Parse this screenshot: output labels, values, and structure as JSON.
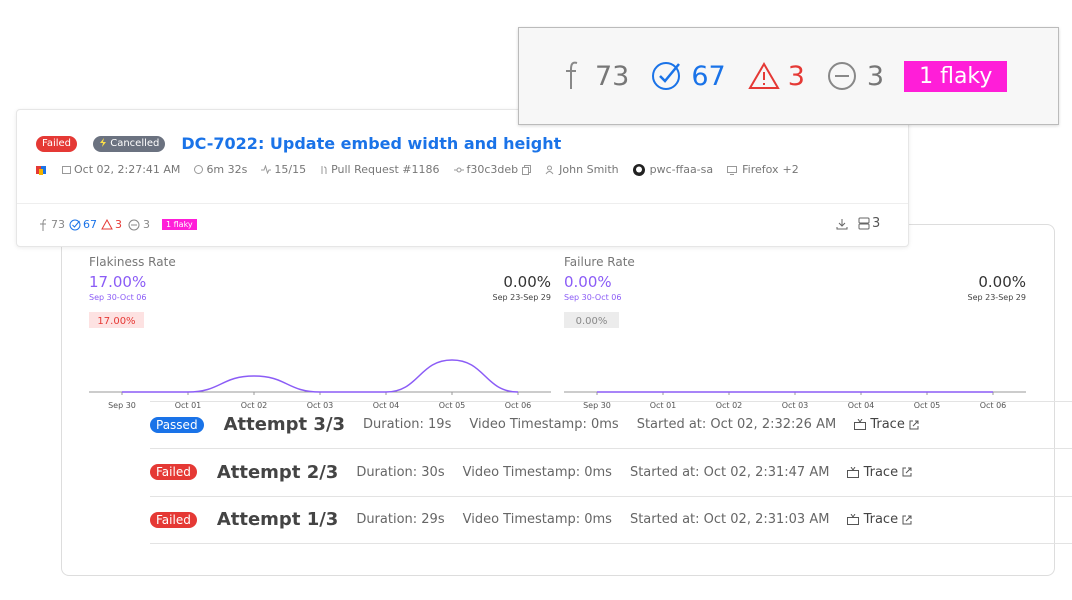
{
  "zoom_stats": {
    "tests": 73,
    "passed": 67,
    "failed": 3,
    "skipped": 3,
    "flaky": "1 flaky"
  },
  "run": {
    "status": "Failed",
    "state": "Cancelled",
    "title": "DC-7022: Update embed width and height",
    "meta": {
      "date": "Oct 02, 2:27:41 AM",
      "duration": "6m 32s",
      "tests": "15/15",
      "pull_request": "Pull Request #1186",
      "commit": "f30c3deb",
      "author": "John Smith",
      "branch": "pwc-ffaa-sa",
      "browser": "Firefox",
      "more_browsers": "+2"
    },
    "stats": {
      "tests": 73,
      "passed": 67,
      "failed": 3,
      "skipped": 3,
      "flaky": "1 flaky",
      "attempts": 3
    }
  },
  "chart_data": [
    {
      "type": "line",
      "title": "Flakiness Rate",
      "current_value": "17.00%",
      "current_range": "Sep 30-Oct 06",
      "badge": "17.00%",
      "previous_value": "0.00%",
      "previous_range": "Sep 23-Sep 29",
      "categories": [
        "Sep 30",
        "Oct 01",
        "Oct 02",
        "Oct 03",
        "Oct 04",
        "Oct 05",
        "Oct 06"
      ],
      "values": [
        0,
        0,
        1,
        0,
        0,
        2,
        0
      ],
      "color": "#8b5cf6",
      "badge_color": "#fde2e2",
      "badge_text_color": "#e53935"
    },
    {
      "type": "line",
      "title": "Failure Rate",
      "current_value": "0.00%",
      "current_range": "Sep 30-Oct 06",
      "badge": "0.00%",
      "previous_value": "0.00%",
      "previous_range": "Sep 23-Sep 29",
      "categories": [
        "Sep 30",
        "Oct 01",
        "Oct 02",
        "Oct 03",
        "Oct 04",
        "Oct 05",
        "Oct 06"
      ],
      "values": [
        0,
        0,
        0,
        0,
        0,
        0,
        0
      ],
      "color": "#8b5cf6",
      "badge_color": "#ececec",
      "badge_text_color": "#888888"
    }
  ],
  "attempts": [
    {
      "status": "Passed",
      "title": "Attempt 3/3",
      "duration": "Duration: 19s",
      "video": "Video Timestamp: 0ms",
      "started": "Started at: Oct 02, 2:32:26 AM",
      "trace": "Trace"
    },
    {
      "status": "Failed",
      "title": "Attempt 2/3",
      "duration": "Duration: 30s",
      "video": "Video Timestamp: 0ms",
      "started": "Started at: Oct 02, 2:31:47 AM",
      "trace": "Trace"
    },
    {
      "status": "Failed",
      "title": "Attempt 1/3",
      "duration": "Duration: 29s",
      "video": "Video Timestamp: 0ms",
      "started": "Started at: Oct 02, 2:31:03 AM",
      "trace": "Trace"
    }
  ]
}
